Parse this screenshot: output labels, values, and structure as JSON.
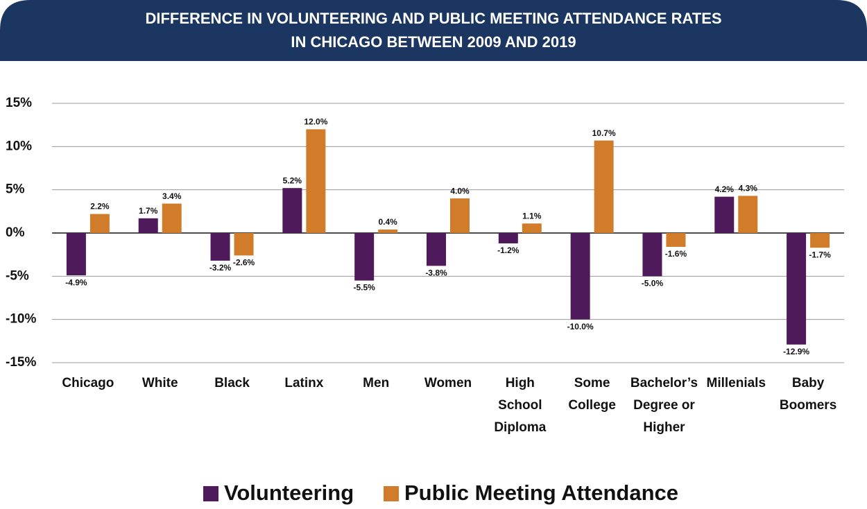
{
  "chart_data": {
    "type": "bar",
    "title": [
      "DIFFERENCE IN VOLUNTEERING AND PUBLIC MEETING ATTENDANCE RATES",
      "IN CHICAGO BETWEEN 2009 AND 2019"
    ],
    "categories": [
      [
        "Chicago"
      ],
      [
        "White"
      ],
      [
        "Black"
      ],
      [
        "Latinx"
      ],
      [
        "Men"
      ],
      [
        "Women"
      ],
      [
        "High",
        "School",
        "Diploma"
      ],
      [
        "Some",
        "College"
      ],
      [
        "Bachelor’s",
        "Degree or",
        "Higher"
      ],
      [
        "Millenials"
      ],
      [
        "Baby",
        "Boomers"
      ]
    ],
    "series": [
      {
        "name": "Volunteering",
        "color": "#4f1a5c",
        "values": [
          -4.9,
          1.7,
          -3.2,
          5.2,
          -5.5,
          -3.8,
          -1.2,
          -10.0,
          -5.0,
          4.2,
          -12.9
        ],
        "value_labels": [
          "-4.9%",
          "1.7%",
          "-3.2%",
          "5.2%",
          "-5.5%",
          "-3.8%",
          "-1.2%",
          "-10.0%",
          "-5.0%",
          "4.2%",
          "-12.9%"
        ]
      },
      {
        "name": "Public Meeting Attendance",
        "color": "#d07c2b",
        "values": [
          2.2,
          3.4,
          -2.6,
          12.0,
          0.4,
          4.0,
          1.1,
          10.7,
          -1.6,
          4.3,
          -1.7
        ],
        "value_labels": [
          "2.2%",
          "3.4%",
          "-2.6%",
          "12.0%",
          "0.4%",
          "4.0%",
          "1.1%",
          "10.7%",
          "-1.6%",
          "4.3%",
          "-1.7%"
        ]
      }
    ],
    "ylim": [
      -15,
      15
    ],
    "yticks": [
      {
        "value": -15,
        "label": "-15%"
      },
      {
        "value": -10,
        "label": "-10%"
      },
      {
        "value": -5,
        "label": "-5%"
      },
      {
        "value": 0,
        "label": "0%"
      },
      {
        "value": 5,
        "label": "5%"
      },
      {
        "value": 10,
        "label": "10%"
      },
      {
        "value": 15,
        "label": "15%"
      }
    ],
    "grid": true,
    "legend": "bottom"
  }
}
